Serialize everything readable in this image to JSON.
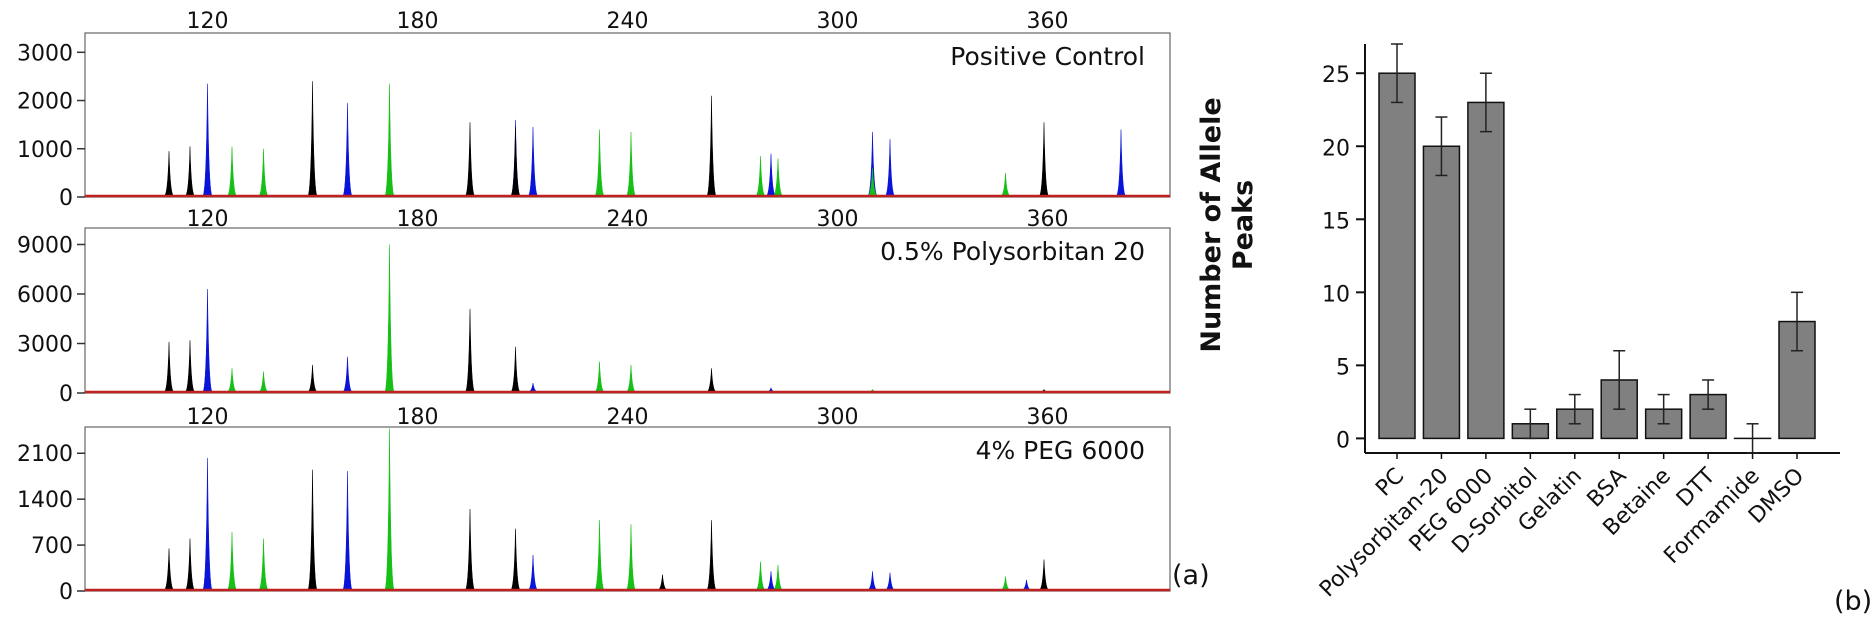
{
  "chart_data": [
    {
      "type": "line",
      "panel_label": "(a)",
      "xlabel": "",
      "ylabel": "",
      "xlim": [
        85,
        395
      ],
      "x_ticks": [
        120,
        180,
        240,
        300,
        360
      ],
      "x_tick_labels": [
        "120",
        "180",
        "240",
        "300",
        "360"
      ],
      "color_map": {
        "black": "#000000",
        "blue": "#0a14d8",
        "green": "#16c016",
        "red": "#c02020"
      },
      "subplots": [
        {
          "title": "Positive Control",
          "ylim": [
            0,
            3400
          ],
          "y_ticks": [
            0,
            1000,
            2000,
            3000
          ],
          "y_tick_labels": [
            "0",
            "1000",
            "2000",
            "3000"
          ],
          "peaks": [
            {
              "x": 109,
              "y": 950,
              "c": "black"
            },
            {
              "x": 115,
              "y": 1050,
              "c": "black"
            },
            {
              "x": 120,
              "y": 2350,
              "c": "blue"
            },
            {
              "x": 127,
              "y": 1050,
              "c": "green"
            },
            {
              "x": 136,
              "y": 1000,
              "c": "green"
            },
            {
              "x": 150,
              "y": 2400,
              "c": "black"
            },
            {
              "x": 160,
              "y": 1950,
              "c": "blue"
            },
            {
              "x": 172,
              "y": 2350,
              "c": "green"
            },
            {
              "x": 195,
              "y": 1550,
              "c": "black"
            },
            {
              "x": 208,
              "y": 1600,
              "c": "blue"
            },
            {
              "x": 208,
              "y": 1450,
              "c": "black"
            },
            {
              "x": 213,
              "y": 1450,
              "c": "blue"
            },
            {
              "x": 232,
              "y": 1400,
              "c": "green"
            },
            {
              "x": 241,
              "y": 1350,
              "c": "green"
            },
            {
              "x": 264,
              "y": 2100,
              "c": "black"
            },
            {
              "x": 278,
              "y": 850,
              "c": "green"
            },
            {
              "x": 281,
              "y": 900,
              "c": "blue"
            },
            {
              "x": 283,
              "y": 800,
              "c": "green"
            },
            {
              "x": 310,
              "y": 1350,
              "c": "blue"
            },
            {
              "x": 310,
              "y": 600,
              "c": "green"
            },
            {
              "x": 315,
              "y": 1200,
              "c": "blue"
            },
            {
              "x": 348,
              "y": 500,
              "c": "green"
            },
            {
              "x": 359,
              "y": 1550,
              "c": "black"
            },
            {
              "x": 381,
              "y": 1400,
              "c": "blue"
            }
          ]
        },
        {
          "title": "0.5% Polysorbitan 20",
          "ylim": [
            0,
            10000
          ],
          "y_ticks": [
            0,
            3000,
            6000,
            9000
          ],
          "y_tick_labels": [
            "0",
            "3000",
            "6000",
            "9000"
          ],
          "peaks": [
            {
              "x": 109,
              "y": 3100,
              "c": "black"
            },
            {
              "x": 115,
              "y": 3200,
              "c": "black"
            },
            {
              "x": 120,
              "y": 6300,
              "c": "blue"
            },
            {
              "x": 127,
              "y": 1500,
              "c": "green"
            },
            {
              "x": 136,
              "y": 1300,
              "c": "green"
            },
            {
              "x": 150,
              "y": 1700,
              "c": "black"
            },
            {
              "x": 160,
              "y": 2200,
              "c": "blue"
            },
            {
              "x": 172,
              "y": 9000,
              "c": "green"
            },
            {
              "x": 195,
              "y": 5100,
              "c": "black"
            },
            {
              "x": 208,
              "y": 2800,
              "c": "black"
            },
            {
              "x": 213,
              "y": 600,
              "c": "blue"
            },
            {
              "x": 232,
              "y": 1900,
              "c": "green"
            },
            {
              "x": 241,
              "y": 1700,
              "c": "green"
            },
            {
              "x": 264,
              "y": 1500,
              "c": "black"
            },
            {
              "x": 281,
              "y": 300,
              "c": "blue"
            },
            {
              "x": 310,
              "y": 200,
              "c": "green"
            },
            {
              "x": 359,
              "y": 200,
              "c": "black"
            }
          ]
        },
        {
          "title": "4% PEG 6000",
          "ylim": [
            0,
            2500
          ],
          "y_ticks": [
            0,
            700,
            1400,
            2100
          ],
          "y_tick_labels": [
            "0",
            "700",
            "1400",
            "2100"
          ],
          "peaks": [
            {
              "x": 109,
              "y": 650,
              "c": "black"
            },
            {
              "x": 115,
              "y": 800,
              "c": "black"
            },
            {
              "x": 120,
              "y": 2030,
              "c": "blue"
            },
            {
              "x": 127,
              "y": 900,
              "c": "green"
            },
            {
              "x": 136,
              "y": 800,
              "c": "green"
            },
            {
              "x": 150,
              "y": 1850,
              "c": "black"
            },
            {
              "x": 160,
              "y": 1830,
              "c": "blue"
            },
            {
              "x": 172,
              "y": 2480,
              "c": "green"
            },
            {
              "x": 195,
              "y": 1250,
              "c": "black"
            },
            {
              "x": 208,
              "y": 950,
              "c": "black"
            },
            {
              "x": 213,
              "y": 550,
              "c": "blue"
            },
            {
              "x": 232,
              "y": 1080,
              "c": "green"
            },
            {
              "x": 241,
              "y": 1020,
              "c": "green"
            },
            {
              "x": 250,
              "y": 250,
              "c": "black"
            },
            {
              "x": 264,
              "y": 1080,
              "c": "black"
            },
            {
              "x": 278,
              "y": 450,
              "c": "green"
            },
            {
              "x": 281,
              "y": 300,
              "c": "blue"
            },
            {
              "x": 283,
              "y": 400,
              "c": "green"
            },
            {
              "x": 310,
              "y": 300,
              "c": "blue"
            },
            {
              "x": 315,
              "y": 280,
              "c": "blue"
            },
            {
              "x": 348,
              "y": 220,
              "c": "green"
            },
            {
              "x": 354,
              "y": 170,
              "c": "blue"
            },
            {
              "x": 359,
              "y": 480,
              "c": "black"
            }
          ]
        }
      ]
    },
    {
      "type": "bar",
      "panel_label": "(b)",
      "title": "",
      "xlabel": "",
      "ylabel": "Number of Allele Peaks",
      "ylim": [
        -1,
        27
      ],
      "y_ticks": [
        0,
        5,
        10,
        15,
        20,
        25
      ],
      "y_tick_labels": [
        "0",
        "5",
        "10",
        "15",
        "20",
        "25"
      ],
      "bar_color": "#808080",
      "categories": [
        "PC",
        "Polysorbitan-20",
        "PEG 6000",
        "D-Sorbitol",
        "Gelatin",
        "BSA",
        "Betaine",
        "DTT",
        "Formamide",
        "DMSO"
      ],
      "values": [
        25,
        20,
        23,
        1,
        2,
        4,
        2,
        3,
        0,
        8
      ],
      "errors": [
        2,
        2,
        2,
        1,
        1,
        2,
        1,
        1,
        1,
        2
      ]
    }
  ]
}
